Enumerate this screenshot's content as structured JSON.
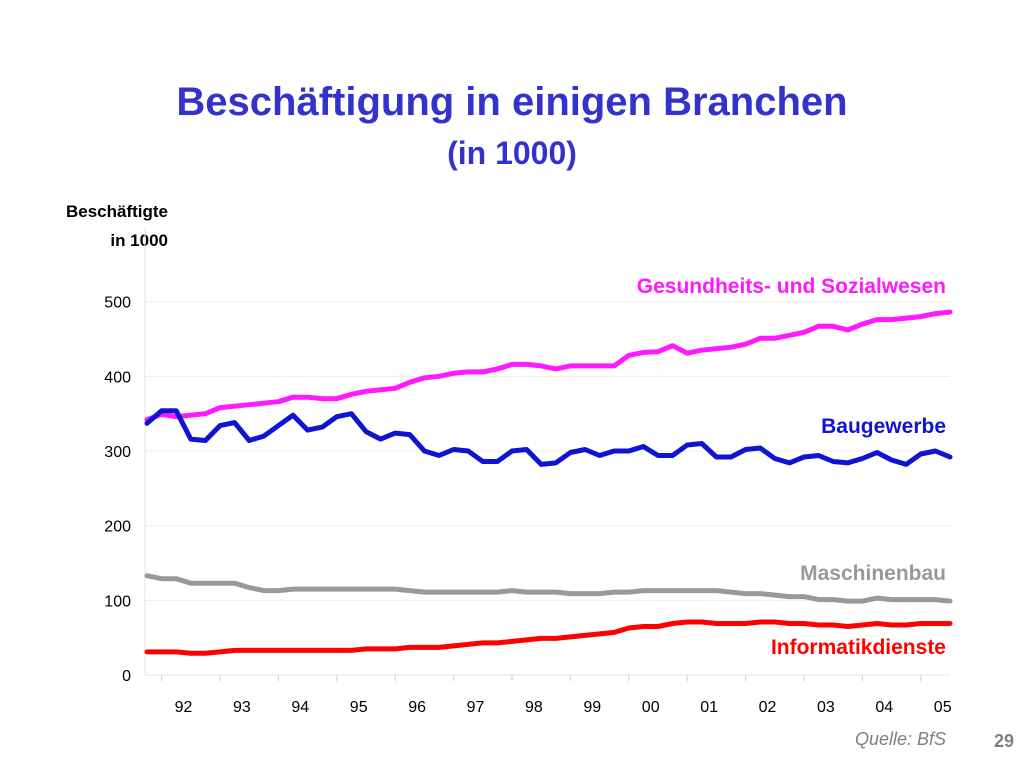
{
  "slide": {
    "title": "Beschäftigung in einigen Branchen",
    "subtitle": "(in 1000)",
    "ylabel_line1": "Beschäftigte",
    "ylabel_line2": "in 1000",
    "source": "Quelle: BfS",
    "page_number": "29"
  },
  "chart_data": {
    "type": "line",
    "title": "Beschäftigung in einigen Branchen",
    "subtitle": "(in 1000)",
    "ylabel": "Beschäftigte in 1000",
    "xlabel": "",
    "ylim": [
      0,
      600
    ],
    "yticks": [
      0,
      100,
      200,
      300,
      400,
      500
    ],
    "x_start_year": 1991.75,
    "x_step_years": 0.25,
    "x_tick_labels": [
      "92",
      "93",
      "94",
      "95",
      "96",
      "97",
      "98",
      "99",
      "00",
      "01",
      "02",
      "03",
      "04",
      "05"
    ],
    "grid": true,
    "legend": "labels on lines (right)",
    "series": [
      {
        "name": "Gesundheits- und Sozialwesen",
        "color": "#ff19ff",
        "values": [
          342,
          349,
          346,
          348,
          350,
          358,
          360,
          362,
          364,
          366,
          372,
          372,
          370,
          370,
          376,
          380,
          382,
          384,
          392,
          398,
          400,
          404,
          406,
          406,
          410,
          416,
          416,
          414,
          410,
          414,
          414,
          414,
          414,
          428,
          432,
          433,
          441,
          431,
          435,
          437,
          439,
          443,
          451,
          451,
          455,
          459,
          467,
          467,
          462,
          470,
          476,
          476,
          478,
          480,
          484,
          486
        ]
      },
      {
        "name": "Baugewerbe",
        "color": "#0f14d2",
        "values": [
          337,
          354,
          354,
          316,
          314,
          334,
          338,
          314,
          320,
          334,
          348,
          328,
          332,
          346,
          350,
          326,
          316,
          324,
          322,
          300,
          294,
          302,
          300,
          286,
          286,
          300,
          302,
          282,
          284,
          298,
          302,
          294,
          300,
          300,
          306,
          294,
          294,
          308,
          310,
          292,
          292,
          302,
          304,
          290,
          284,
          292,
          294,
          286,
          284,
          290,
          298,
          288,
          282,
          296,
          300,
          292
        ]
      },
      {
        "name": "Maschinenbau",
        "color": "#999999",
        "values": [
          133,
          129,
          129,
          123,
          123,
          123,
          123,
          117,
          113,
          113,
          115,
          115,
          115,
          115,
          115,
          115,
          115,
          115,
          113,
          111,
          111,
          111,
          111,
          111,
          111,
          113,
          111,
          111,
          111,
          109,
          109,
          109,
          111,
          111,
          113,
          113,
          113,
          113,
          113,
          113,
          111,
          109,
          109,
          107,
          105,
          105,
          101,
          101,
          99,
          99,
          103,
          101,
          101,
          101,
          101,
          99
        ]
      },
      {
        "name": "Informatikdienste",
        "color": "#ff0000",
        "values": [
          31,
          31,
          31,
          29,
          29,
          31,
          33,
          33,
          33,
          33,
          33,
          33,
          33,
          33,
          33,
          35,
          35,
          35,
          37,
          37,
          37,
          39,
          41,
          43,
          43,
          45,
          47,
          49,
          49,
          51,
          53,
          55,
          57,
          63,
          65,
          65,
          69,
          71,
          71,
          69,
          69,
          69,
          71,
          71,
          69,
          69,
          67,
          67,
          65,
          67,
          69,
          67,
          67,
          69,
          69,
          69
        ]
      }
    ]
  }
}
